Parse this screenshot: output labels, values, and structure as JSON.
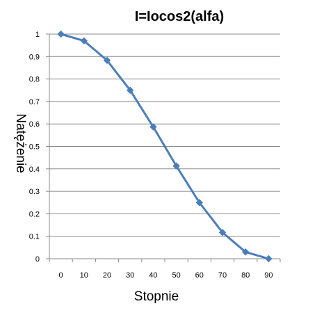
{
  "chart_data": {
    "type": "line",
    "title": "I=Iocos2(alfa)",
    "xlabel": "Stopnie",
    "ylabel": "Natężenie",
    "x": [
      0,
      10,
      20,
      30,
      40,
      50,
      60,
      70,
      80,
      90
    ],
    "y_ticks": [
      "0",
      "0.1",
      "0.2",
      "0.3",
      "0.4",
      "0.5",
      "0.6",
      "0.7",
      "0.8",
      "0.9",
      "1"
    ],
    "series": [
      {
        "values": [
          1,
          0.97,
          0.883,
          0.75,
          0.587,
          0.413,
          0.25,
          0.117,
          0.03,
          0
        ]
      }
    ],
    "ylim": [
      0,
      1
    ],
    "grid": true,
    "legend": "none",
    "marker": "diamond",
    "colors": {
      "series": "#4a7ebb",
      "grid": "#888888",
      "axis": "#888888"
    }
  }
}
